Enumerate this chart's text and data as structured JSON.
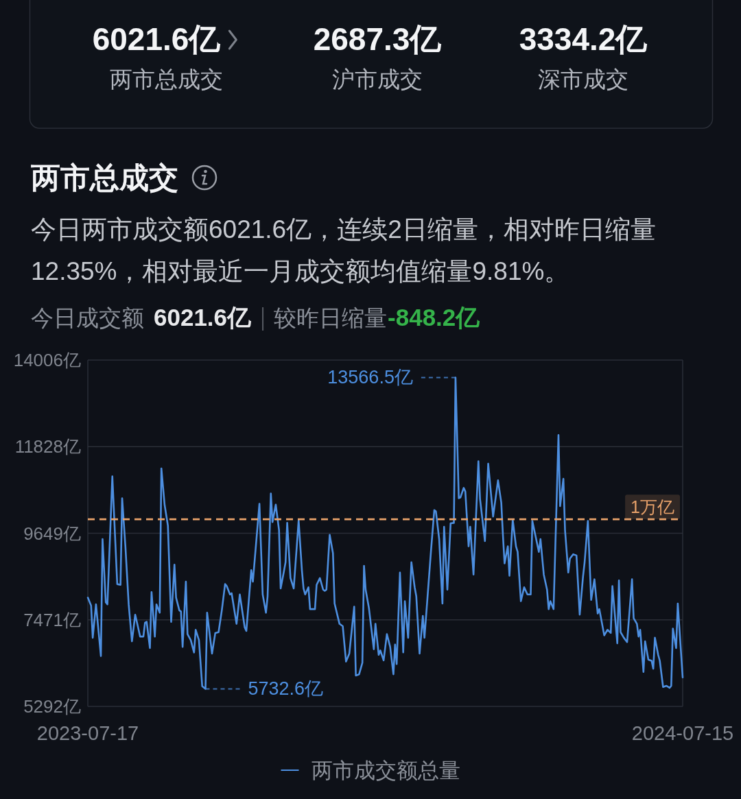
{
  "chart_data": {
    "type": "line",
    "title": "两市总成交",
    "subtitle": "今日两市成交额6021.6亿，连续2日缩量，相对昨日缩量12.35%，相对最近一月成交额均值缩量9.81%。",
    "annotations": [
      "6021.6亿",
      "两市总成交",
      "2687.3亿",
      "沪市成交",
      "3334.2亿",
      "深市成交",
      "今日成交额",
      "6021.6亿",
      "较昨日缩量",
      "-848.2亿",
      {
        "text": "13566.5亿",
        "x": "2024-02-27",
        "y": 13566.5
      },
      {
        "text": "5732.6亿",
        "x": "2023-09-27",
        "y": 5732.6
      }
    ],
    "x": [
      "2023-07-17",
      "2023-07-19",
      "2023-07-20",
      "2023-07-22",
      "2023-07-25",
      "2023-07-26",
      "2023-07-28",
      "2023-07-29",
      "2023-08-01",
      "2023-08-04",
      "2023-08-06",
      "2023-08-07",
      "2023-08-09",
      "2023-08-11",
      "2023-08-13",
      "2023-08-15",
      "2023-08-16",
      "2023-08-18",
      "2023-08-20",
      "2023-08-21",
      "2023-08-22",
      "2023-08-24",
      "2023-08-25",
      "2023-08-27",
      "2023-08-28",
      "2023-08-30",
      "2023-08-31",
      "2023-09-02",
      "2023-09-04",
      "2023-09-06",
      "2023-09-08",
      "2023-09-09",
      "2023-09-11",
      "2023-09-12",
      "2023-09-13",
      "2023-09-15",
      "2023-09-16",
      "2023-09-18",
      "2023-09-20",
      "2023-09-21",
      "2023-09-23",
      "2023-09-25",
      "2023-09-27",
      "2023-09-28",
      "2023-10-01",
      "2023-10-03",
      "2023-10-05",
      "2023-10-07",
      "2023-10-09",
      "2023-10-10",
      "2023-10-12",
      "2023-10-13",
      "2023-10-16",
      "2023-10-18",
      "2023-10-21",
      "2023-10-22",
      "2023-10-25",
      "2023-10-26",
      "2023-10-30",
      "2023-11-01",
      "2023-11-03",
      "2023-11-04",
      "2023-11-06",
      "2023-11-07",
      "2023-11-09",
      "2023-11-11",
      "2023-11-12",
      "2023-11-14",
      "2023-11-15",
      "2023-11-16",
      "2023-11-18",
      "2023-11-20",
      "2023-11-23",
      "2023-11-25",
      "2023-11-26",
      "2023-11-27",
      "2023-11-29",
      "2023-11-30",
      "2023-12-03",
      "2023-12-04",
      "2023-12-06",
      "2023-12-08",
      "2023-12-09",
      "2023-12-10",
      "2023-12-12",
      "2023-12-14",
      "2023-12-15",
      "2023-12-18",
      "2023-12-20",
      "2023-12-22",
      "2023-12-24",
      "2023-12-27",
      "2023-12-28",
      "2023-12-30",
      "2024-01-01",
      "2024-01-02",
      "2024-01-03",
      "2024-01-05",
      "2024-01-08",
      "2024-01-09",
      "2024-01-11",
      "2024-01-12",
      "2024-01-14",
      "2024-01-16",
      "2024-01-18",
      "2024-01-20",
      "2024-01-21",
      "2024-01-22",
      "2024-01-24",
      "2024-01-26",
      "2024-01-27",
      "2024-01-29",
      "2024-01-31",
      "2024-02-02",
      "2024-02-03",
      "2024-02-05",
      "2024-02-07",
      "2024-02-08",
      "2024-02-12",
      "2024-02-14",
      "2024-02-15",
      "2024-02-17",
      "2024-02-19",
      "2024-02-20",
      "2024-02-22",
      "2024-02-24",
      "2024-02-26",
      "2024-02-27",
      "2024-02-29",
      "2024-03-01",
      "2024-03-03",
      "2024-03-04",
      "2024-03-06",
      "2024-03-07",
      "2024-03-09",
      "2024-03-12",
      "2024-03-13",
      "2024-03-16",
      "2024-03-18",
      "2024-03-21",
      "2024-03-24",
      "2024-03-26",
      "2024-03-27",
      "2024-03-28",
      "2024-03-30",
      "2024-03-31",
      "2024-04-02",
      "2024-04-04",
      "2024-04-05",
      "2024-04-07",
      "2024-04-09",
      "2024-04-11",
      "2024-04-13",
      "2024-04-14",
      "2024-04-18",
      "2024-04-19",
      "2024-04-21",
      "2024-04-23",
      "2024-04-24",
      "2024-04-25",
      "2024-04-27",
      "2024-04-30",
      "2024-05-01",
      "2024-05-03",
      "2024-05-04",
      "2024-05-06",
      "2024-05-07",
      "2024-05-09",
      "2024-05-11",
      "2024-05-13",
      "2024-05-15",
      "2024-05-16",
      "2024-05-18",
      "2024-05-20",
      "2024-05-22",
      "2024-05-24",
      "2024-05-25",
      "2024-05-28",
      "2024-05-30",
      "2024-06-01",
      "2024-06-02",
      "2024-06-05",
      "2024-06-06",
      "2024-06-07",
      "2024-06-09",
      "2024-06-11",
      "2024-06-14",
      "2024-06-15",
      "2024-06-17",
      "2024-06-18",
      "2024-06-19",
      "2024-06-21",
      "2024-06-22",
      "2024-06-24",
      "2024-06-26",
      "2024-06-27",
      "2024-06-28",
      "2024-06-30",
      "2024-07-01",
      "2024-07-03",
      "2024-07-05",
      "2024-07-07",
      "2024-07-08",
      "2024-07-09",
      "2024-07-11",
      "2024-07-12",
      "2024-07-15"
    ],
    "series": [
      {
        "name": "两市成交额总量",
        "color": "#4d8fe0",
        "values": [
          8030,
          7830,
          7020,
          7860,
          6560,
          9500,
          7910,
          7860,
          11080,
          8370,
          8350,
          10530,
          9320,
          7860,
          6930,
          7600,
          7420,
          7050,
          7050,
          7400,
          7420,
          6760,
          8170,
          7050,
          7860,
          7650,
          11280,
          10360,
          9840,
          7420,
          8860,
          8030,
          7710,
          7680,
          6790,
          8430,
          7110,
          6960,
          6650,
          7220,
          6960,
          5800,
          5732.6,
          7650,
          6620,
          7140,
          7160,
          7710,
          8370,
          8320,
          8110,
          8140,
          7370,
          8110,
          7280,
          7190,
          8720,
          8430,
          10390,
          8110,
          7650,
          8060,
          10650,
          9930,
          10370,
          9730,
          8260,
          8690,
          8920,
          9910,
          8520,
          8260,
          9970,
          8720,
          8260,
          8110,
          8290,
          7740,
          7740,
          8350,
          8520,
          8230,
          8200,
          8230,
          9610,
          9150,
          7880,
          7370,
          7310,
          6420,
          6620,
          7800,
          6070,
          6100,
          6390,
          8830,
          8230,
          7770,
          6730,
          7370,
          6590,
          6700,
          6450,
          7110,
          6790,
          6100,
          6850,
          6360,
          8660,
          6650,
          7940,
          7020,
          8920,
          8290,
          8060,
          6620,
          7570,
          7020,
          9210,
          10230,
          10200,
          9500,
          7880,
          9810,
          8230,
          9900,
          9910,
          13566.5,
          10530,
          10550,
          10790,
          10700,
          9320,
          9810,
          8610,
          11460,
          10510,
          9450,
          11400,
          10070,
          10980,
          10420,
          9610,
          8890,
          9320,
          8580,
          9990,
          9320,
          9180,
          7940,
          8290,
          8110,
          8110,
          9960,
          9180,
          9500,
          8610,
          8230,
          7740,
          7940,
          7740,
          12120,
          10330,
          11020,
          9730,
          8660,
          9010,
          9120,
          9090,
          7600,
          8550,
          8920,
          9960,
          7970,
          8490,
          7630,
          7740,
          7080,
          7220,
          7140,
          8320,
          6880,
          8460,
          7160,
          7020,
          6910,
          8490,
          7510,
          7370,
          7050,
          7220,
          6160,
          6930,
          6470,
          6440,
          6240,
          7020,
          6590,
          6440,
          5780,
          5810,
          5760,
          5810,
          7250,
          6760,
          7880,
          6021.6
        ]
      }
    ],
    "xlim": [
      "2023-07-17",
      "2024-07-15"
    ],
    "xticks": [
      "2023-07-17",
      "2024-07-15"
    ],
    "ylim": [
      5292,
      14006
    ],
    "yticks": [
      {
        "value": 5292,
        "label": "5292亿"
      },
      {
        "value": 7471,
        "label": "7471亿"
      },
      {
        "value": 9649,
        "label": "9649亿"
      },
      {
        "value": 11828,
        "label": "11828亿"
      },
      {
        "value": 14006,
        "label": "14006亿"
      }
    ],
    "ref_lines": [
      {
        "axis": "y",
        "value": 10000,
        "label": "1万亿",
        "color": "#eaa36b",
        "line_style": "dashed"
      }
    ],
    "grid": "y",
    "legend": "bottom"
  }
}
